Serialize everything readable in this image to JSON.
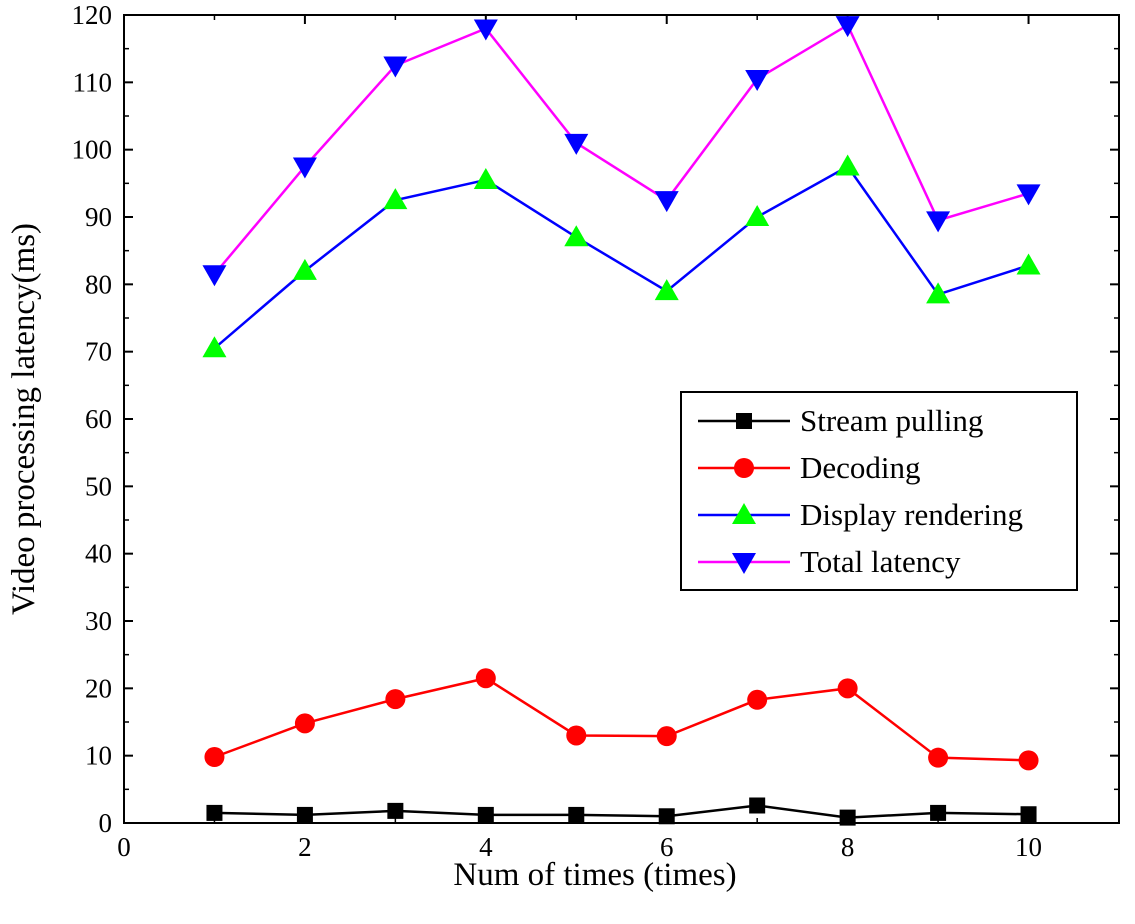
{
  "chart_data": {
    "type": "line",
    "title": "",
    "xlabel": "Num of times (times)",
    "ylabel": "Video processing latency(ms)",
    "xlim": [
      0,
      11
    ],
    "ylim": [
      0,
      120
    ],
    "x_ticks": [
      0,
      2,
      4,
      6,
      8,
      10
    ],
    "y_ticks": [
      0,
      10,
      20,
      30,
      40,
      50,
      60,
      70,
      80,
      90,
      100,
      110,
      120
    ],
    "grid": false,
    "legend_position": "center-right",
    "x": [
      1,
      2,
      3,
      4,
      5,
      6,
      7,
      8,
      9,
      10
    ],
    "series": [
      {
        "name": "Stream pulling",
        "color": "#000000",
        "marker": "square",
        "marker_color": "#000000",
        "values": [
          1.5,
          1.2,
          1.8,
          1.2,
          1.2,
          1.0,
          2.6,
          0.8,
          1.5,
          1.3
        ]
      },
      {
        "name": "Decoding",
        "color": "#ff0000",
        "marker": "circle",
        "marker_color": "#ff0000",
        "values": [
          9.8,
          14.8,
          18.4,
          21.5,
          13.0,
          12.9,
          18.3,
          20.0,
          9.7,
          9.3
        ]
      },
      {
        "name": "Display rendering",
        "color": "#0000ff",
        "marker": "triangle-up",
        "marker_color": "#00ff00",
        "values": [
          70.5,
          82.0,
          92.5,
          95.5,
          87.0,
          79.0,
          90.0,
          97.5,
          78.5,
          82.8
        ]
      },
      {
        "name": "Total latency",
        "color": "#ff00ff",
        "marker": "triangle-down",
        "marker_color": "#0000ff",
        "values": [
          81.5,
          97.5,
          112.5,
          118.0,
          101.0,
          92.5,
          110.5,
          118.5,
          89.5,
          93.5
        ]
      }
    ]
  }
}
